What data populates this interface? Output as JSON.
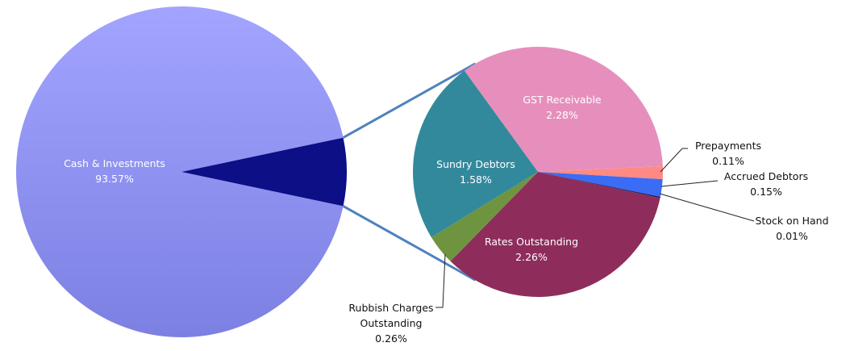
{
  "chart_data": {
    "type": "pie-of-pie",
    "categories": [
      "Cash & Investments",
      "GST Receivable",
      "Prepayments",
      "Accrued Debtors",
      "Stock on Hand",
      "Rates Outstanding",
      "Rubbish Charges Outstanding",
      "Sundry Debtors"
    ],
    "values": [
      93.57,
      2.28,
      0.11,
      0.15,
      0.01,
      2.26,
      0.26,
      1.58
    ],
    "value_labels": [
      "93.57%",
      "2.28%",
      "0.11%",
      "0.15%",
      "0.01%",
      "2.26%",
      "0.26%",
      "1.58%"
    ],
    "colors": [
      "#9a9cf6",
      "#e68fbd",
      "#ff8a84",
      "#3a6cf5",
      "#1a1a5a",
      "#8e2d5c",
      "#6f9440",
      "#33899c"
    ],
    "other_color": "#0c0f86"
  }
}
